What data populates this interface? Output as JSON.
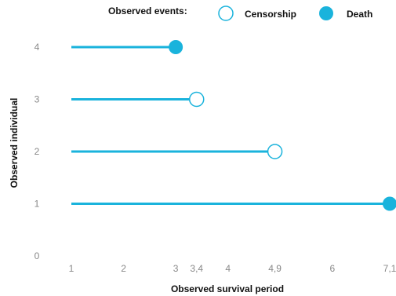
{
  "chart_data": {
    "type": "lollipop",
    "colors": {
      "accent": "#1ab3dc",
      "tick": "#888888",
      "text": "#111111"
    },
    "legend": {
      "title": "Observed events:",
      "items": [
        {
          "label": "Censorship",
          "marker": "hollow-circle"
        },
        {
          "label": "Death",
          "marker": "filled-circle"
        }
      ],
      "placement": "top"
    },
    "xlabel": "Observed survival period",
    "ylabel": "Observed individual",
    "xlim": [
      1,
      7.1
    ],
    "ylim": [
      0,
      4.5
    ],
    "x_ticks": [
      {
        "value": 1,
        "label": "1"
      },
      {
        "value": 2,
        "label": "2"
      },
      {
        "value": 3,
        "label": "3"
      },
      {
        "value": 3.4,
        "label": "3,4"
      },
      {
        "value": 4,
        "label": "4"
      },
      {
        "value": 4.9,
        "label": "4,9"
      },
      {
        "value": 6,
        "label": "6"
      },
      {
        "value": 7.1,
        "label": "7,1"
      }
    ],
    "y_ticks": [
      "0",
      "1",
      "2",
      "3",
      "4"
    ],
    "points": [
      {
        "individual": 1,
        "start": 1,
        "end": 7.1,
        "event": "Death"
      },
      {
        "individual": 2,
        "start": 1,
        "end": 4.9,
        "event": "Censorship"
      },
      {
        "individual": 3,
        "start": 1,
        "end": 3.4,
        "event": "Censorship"
      },
      {
        "individual": 4,
        "start": 1,
        "end": 3,
        "event": "Death"
      }
    ],
    "grid": false
  }
}
